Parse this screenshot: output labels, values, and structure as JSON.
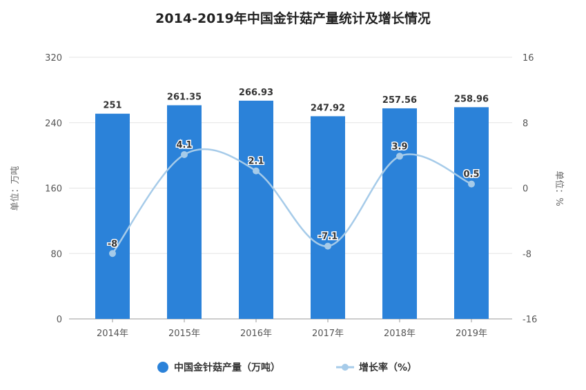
{
  "chart_data": {
    "type": "bar+line",
    "title": "2014-2019年中国金针菇产量统计及增长情况",
    "categories": [
      "2014年",
      "2015年",
      "2016年",
      "2017年",
      "2018年",
      "2019年"
    ],
    "series": [
      {
        "name": "中国金针菇产量（万吨）",
        "type": "bar",
        "axis": "left",
        "color": "#2b82d9",
        "values": [
          251,
          261.35,
          266.93,
          247.92,
          257.56,
          258.96
        ],
        "labels": [
          "251",
          "261.35",
          "266.93",
          "247.92",
          "257.56",
          "258.96"
        ]
      },
      {
        "name": "增长率（%）",
        "type": "line",
        "axis": "right",
        "color": "#a6cbe9",
        "smooth": true,
        "values": [
          -8,
          4.1,
          2.1,
          -7.1,
          3.9,
          0.5
        ],
        "labels": [
          "-8",
          "4.1",
          "2.1",
          "-7.1",
          "3.9",
          "0.5"
        ]
      }
    ],
    "ylabel_left": "单位：万吨",
    "ylabel_right": "单位：%",
    "ylim_left": [
      0,
      320
    ],
    "yticks_left": [
      "0",
      "80",
      "160",
      "240",
      "320"
    ],
    "ylim_right": [
      -16,
      16
    ],
    "yticks_right": [
      "-16",
      "-8",
      "0",
      "8",
      "16"
    ],
    "grid": true,
    "legend": "bottom"
  }
}
